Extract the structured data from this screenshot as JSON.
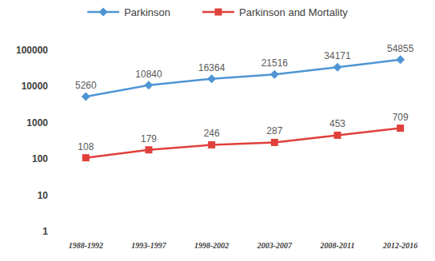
{
  "chart_data": {
    "type": "line",
    "categories": [
      "1988-1992",
      "1993-1997",
      "1998-2002",
      "2003-2007",
      "2008-2011",
      "2012-2016"
    ],
    "series": [
      {
        "name": "Parkinson",
        "color": "#4f95d4",
        "marker": "diamond",
        "values": [
          5260,
          10840,
          16364,
          21516,
          34171,
          54855
        ]
      },
      {
        "name": "Parkinson and Mortality",
        "color": "#e0403a",
        "marker": "square",
        "values": [
          108,
          179,
          246,
          287,
          453,
          709
        ]
      }
    ],
    "log": "y",
    "ylim": [
      1,
      100000
    ],
    "yticks": [
      1,
      10,
      100,
      1000,
      10000,
      100000
    ],
    "grid": false,
    "legend": "top",
    "data_labels": true
  }
}
